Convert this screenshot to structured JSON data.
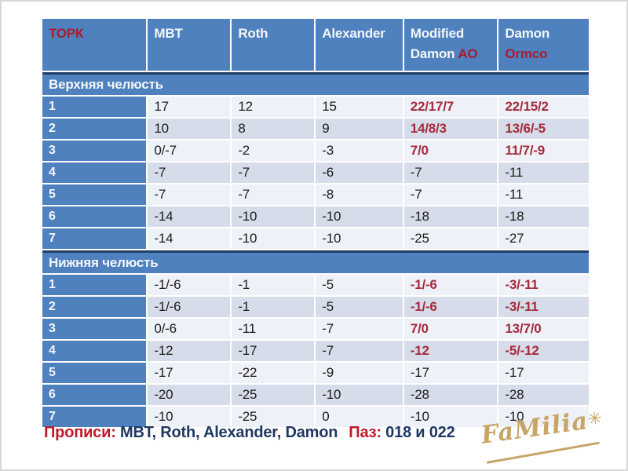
{
  "colors": {
    "header_blue": "#4e81bd",
    "dark_navy_border": "#1e3e66",
    "band_light": "#eef1f7",
    "band_dark": "#d6dce9",
    "value_red": "#a62b3c",
    "footer_red": "#c01a2e",
    "footer_navy": "#1f3864",
    "logo_gold": "#c7a566"
  },
  "table": {
    "header": [
      {
        "name": "torque",
        "lines": [
          [
            {
              "t": "ТОРК",
              "red": true
            }
          ]
        ]
      },
      {
        "name": "mbt",
        "lines": [
          [
            {
              "t": "MBT"
            }
          ]
        ]
      },
      {
        "name": "roth",
        "lines": [
          [
            {
              "t": "Roth"
            }
          ]
        ]
      },
      {
        "name": "alexander",
        "lines": [
          [
            {
              "t": "Alexander"
            }
          ]
        ]
      },
      {
        "name": "modified-damon-ao",
        "lines": [
          [
            {
              "t": "Modified"
            }
          ],
          [
            {
              "t": "Damon "
            },
            {
              "t": "AO",
              "red": true
            }
          ]
        ]
      },
      {
        "name": "damon-ormco",
        "lines": [
          [
            {
              "t": "Damon"
            }
          ],
          [
            {
              "t": "Ormco",
              "red": true
            }
          ]
        ]
      }
    ],
    "sections": [
      {
        "title": "Верхняя челюсть",
        "rows": [
          {
            "label": "1",
            "values": [
              "17",
              "12",
              "15",
              "22/17/7",
              "22/15/2"
            ],
            "red": [
              false,
              false,
              false,
              true,
              true
            ]
          },
          {
            "label": "2",
            "values": [
              "10",
              "8",
              "9",
              "14/8/3",
              "13/6/-5"
            ],
            "red": [
              false,
              false,
              false,
              true,
              true
            ]
          },
          {
            "label": "3",
            "values": [
              "0/-7",
              "-2",
              "-3",
              "7/0",
              "11/7/-9"
            ],
            "red": [
              false,
              false,
              false,
              true,
              true
            ]
          },
          {
            "label": "4",
            "values": [
              "-7",
              "-7",
              "-6",
              "-7",
              "-11"
            ],
            "red": [
              false,
              false,
              false,
              false,
              false
            ]
          },
          {
            "label": "5",
            "values": [
              "-7",
              "-7",
              "-8",
              "-7",
              "-11"
            ],
            "red": [
              false,
              false,
              false,
              false,
              false
            ]
          },
          {
            "label": "6",
            "values": [
              "-14",
              "-10",
              "-10",
              "-18",
              "-18"
            ],
            "red": [
              false,
              false,
              false,
              false,
              false
            ]
          },
          {
            "label": "7",
            "values": [
              "-14",
              "-10",
              "-10",
              "-25",
              "-27"
            ],
            "red": [
              false,
              false,
              false,
              false,
              false
            ]
          }
        ]
      },
      {
        "title": "Нижняя челюсть",
        "rows": [
          {
            "label": "1",
            "values": [
              "-1/-6",
              "-1",
              "-5",
              "-1/-6",
              "-3/-11"
            ],
            "red": [
              false,
              false,
              false,
              true,
              true
            ]
          },
          {
            "label": "2",
            "values": [
              "-1/-6",
              "-1",
              "-5",
              "-1/-6",
              "-3/-11"
            ],
            "red": [
              false,
              false,
              false,
              true,
              true
            ]
          },
          {
            "label": "3",
            "values": [
              "0/-6",
              "-11",
              "-7",
              "7/0",
              "13/7/0"
            ],
            "red": [
              false,
              false,
              false,
              true,
              true
            ]
          },
          {
            "label": "4",
            "values": [
              "-12",
              "-17",
              "-7",
              "-12",
              "-5/-12"
            ],
            "red": [
              false,
              false,
              false,
              true,
              true
            ]
          },
          {
            "label": "5",
            "values": [
              "-17",
              "-22",
              "-9",
              "-17",
              "-17"
            ],
            "red": [
              false,
              false,
              false,
              false,
              false
            ]
          },
          {
            "label": "6",
            "values": [
              "-20",
              "-25",
              "-10",
              "-28",
              "-28"
            ],
            "red": [
              false,
              false,
              false,
              false,
              false
            ]
          },
          {
            "label": "7",
            "values": [
              "-10",
              "-25",
              "0",
              "-10",
              "-10"
            ],
            "red": [
              false,
              false,
              false,
              false,
              false
            ]
          }
        ]
      }
    ]
  },
  "footer": {
    "label1": "Прописи:",
    "value1": " MBT, Roth, Alexander, Damon",
    "label2": "Паз:",
    "value2": " 018 и 022"
  },
  "logo": {
    "text": "FaMilia",
    "star": "✳"
  }
}
